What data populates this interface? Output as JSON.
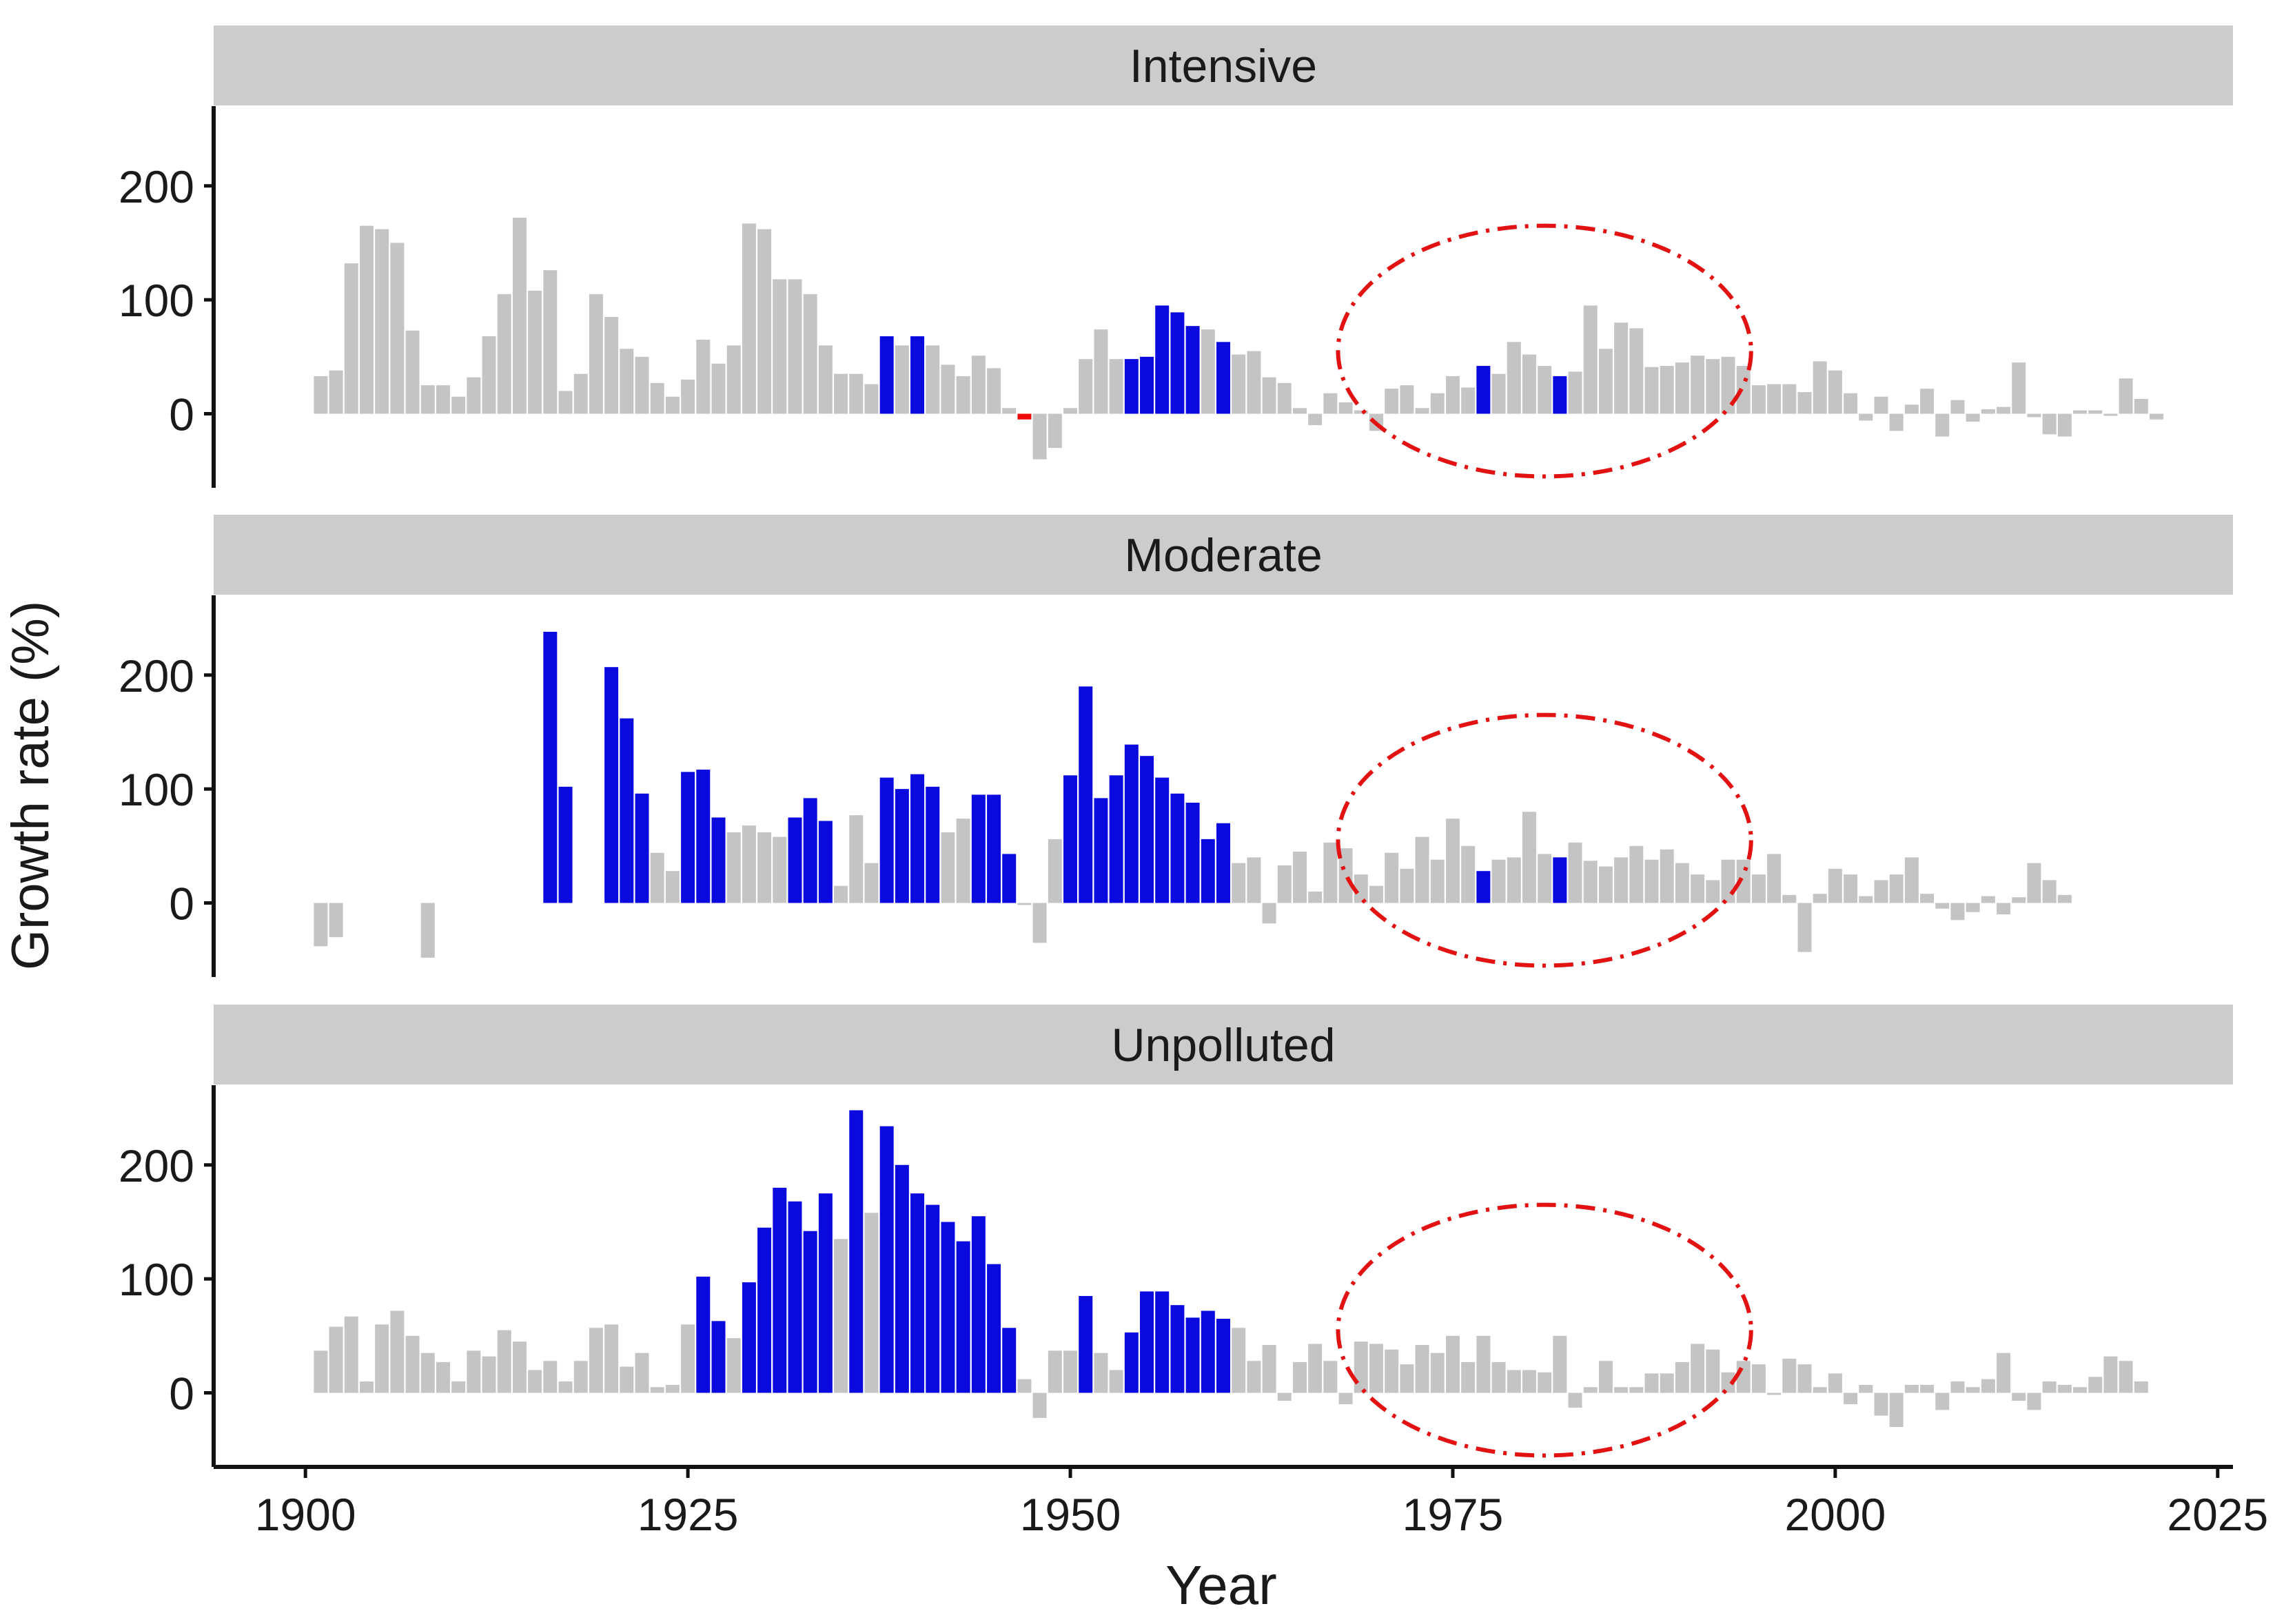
{
  "colors": {
    "neutral": "#c4c4c4",
    "significant_positive": "#0a0adf",
    "significant_negative": "#ee0a0a",
    "strip_fill": "#cccccc",
    "axis": "#111111",
    "highlight_ellipse": "#e21212",
    "background": "#ffffff"
  },
  "chart_data": {
    "type": "bar",
    "title": "",
    "xlabel": "Year",
    "ylabel": "Growth rate (%)",
    "xlim": [
      1894,
      2026
    ],
    "ylim": [
      -65,
      270
    ],
    "x_ticks": [
      1900,
      1925,
      1950,
      1975,
      2000,
      2025
    ],
    "y_ticks": [
      0,
      100,
      200
    ],
    "legend": "none",
    "highlight": {
      "shape": "dash-dot ellipse",
      "x_center": 1981,
      "x_radius": 13.5,
      "y_center": 55,
      "y_radius": 110
    },
    "facets": [
      {
        "name": "Intensive",
        "start_year": 1901,
        "values": [
          33,
          38,
          132,
          165,
          162,
          150,
          73,
          25,
          25,
          15,
          32,
          68,
          105,
          172,
          108,
          126,
          20,
          35,
          105,
          85,
          57,
          50,
          27,
          15,
          30,
          65,
          44,
          60,
          167,
          162,
          118,
          118,
          105,
          60,
          35,
          35,
          26,
          68,
          60,
          68,
          60,
          43,
          33,
          51,
          40,
          5,
          -5,
          -40,
          -30,
          5,
          48,
          74,
          48,
          48,
          50,
          95,
          89,
          77,
          74,
          63,
          52,
          55,
          32,
          27,
          5,
          -10,
          18,
          10,
          3,
          -15,
          22,
          25,
          5,
          18,
          33,
          23,
          42,
          35,
          63,
          52,
          42,
          33,
          37,
          95,
          57,
          80,
          75,
          41,
          42,
          45,
          51,
          48,
          50,
          42,
          25,
          26,
          26,
          19,
          46,
          38,
          18,
          -6,
          15,
          -15,
          8,
          22,
          -20,
          12,
          -7,
          4,
          6,
          45,
          -3,
          -18,
          -20,
          3,
          3,
          -1,
          31,
          13,
          -5
        ],
        "significant": {
          "1938": "pos",
          "1940": "pos",
          "1947": "neg",
          "1954": "pos",
          "1955": "pos",
          "1956": "pos",
          "1957": "pos",
          "1958": "pos",
          "1960": "pos",
          "1977": "pos",
          "1982": "pos"
        }
      },
      {
        "name": "Moderate",
        "start_year": 1901,
        "values": [
          -38,
          -30,
          null,
          null,
          null,
          null,
          null,
          -48,
          null,
          null,
          null,
          null,
          null,
          null,
          null,
          238,
          102,
          null,
          null,
          207,
          162,
          96,
          44,
          28,
          115,
          117,
          75,
          62,
          68,
          62,
          58,
          75,
          92,
          72,
          15,
          77,
          35,
          110,
          100,
          113,
          102,
          62,
          74,
          95,
          95,
          43,
          0,
          -35,
          56,
          112,
          190,
          92,
          112,
          139,
          129,
          110,
          96,
          88,
          56,
          70,
          35,
          40,
          -18,
          33,
          45,
          10,
          53,
          48,
          25,
          15,
          44,
          30,
          58,
          38,
          74,
          50,
          28,
          38,
          40,
          80,
          43,
          40,
          53,
          37,
          32,
          40,
          50,
          38,
          47,
          35,
          25,
          20,
          38,
          38,
          25,
          43,
          7,
          -43,
          8,
          30,
          25,
          6,
          20,
          25,
          40,
          8,
          -5,
          -15,
          -8,
          6,
          -10,
          5,
          35,
          20,
          7
        ],
        "significant": {
          "1916": "pos",
          "1917": "pos",
          "1920": "pos",
          "1921": "pos",
          "1922": "pos",
          "1925": "pos",
          "1926": "pos",
          "1927": "pos",
          "1932": "pos",
          "1933": "pos",
          "1934": "pos",
          "1938": "pos",
          "1939": "pos",
          "1940": "pos",
          "1941": "pos",
          "1944": "pos",
          "1945": "pos",
          "1946": "pos",
          "1950": "pos",
          "1951": "pos",
          "1952": "pos",
          "1953": "pos",
          "1954": "pos",
          "1955": "pos",
          "1956": "pos",
          "1957": "pos",
          "1958": "pos",
          "1959": "pos",
          "1960": "pos",
          "1977": "pos",
          "1982": "pos"
        }
      },
      {
        "name": "Unpolluted",
        "start_year": 1901,
        "values": [
          37,
          58,
          67,
          10,
          60,
          72,
          50,
          35,
          27,
          10,
          37,
          32,
          55,
          45,
          20,
          28,
          10,
          28,
          57,
          60,
          23,
          35,
          5,
          7,
          60,
          102,
          63,
          48,
          97,
          145,
          180,
          168,
          142,
          175,
          135,
          248,
          158,
          234,
          200,
          175,
          165,
          150,
          133,
          155,
          113,
          57,
          12,
          -22,
          37,
          37,
          85,
          35,
          20,
          53,
          89,
          89,
          77,
          66,
          72,
          65,
          57,
          28,
          42,
          -7,
          27,
          43,
          28,
          -10,
          45,
          43,
          38,
          25,
          42,
          35,
          50,
          27,
          50,
          27,
          20,
          20,
          18,
          50,
          -13,
          5,
          28,
          5,
          5,
          17,
          17,
          27,
          43,
          38,
          18,
          28,
          25,
          0,
          30,
          25,
          5,
          17,
          -10,
          7,
          -20,
          -30,
          7,
          7,
          -15,
          10,
          5,
          12,
          35,
          -7,
          -15,
          10,
          7,
          5,
          14,
          32,
          28,
          10
        ],
        "significant": {
          "1926": "pos",
          "1927": "pos",
          "1929": "pos",
          "1930": "pos",
          "1931": "pos",
          "1932": "pos",
          "1933": "pos",
          "1934": "pos",
          "1936": "pos",
          "1938": "pos",
          "1939": "pos",
          "1940": "pos",
          "1941": "pos",
          "1942": "pos",
          "1943": "pos",
          "1944": "pos",
          "1945": "pos",
          "1946": "pos",
          "1951": "pos",
          "1954": "pos",
          "1955": "pos",
          "1956": "pos",
          "1957": "pos",
          "1958": "pos",
          "1959": "pos",
          "1960": "pos"
        }
      }
    ]
  }
}
